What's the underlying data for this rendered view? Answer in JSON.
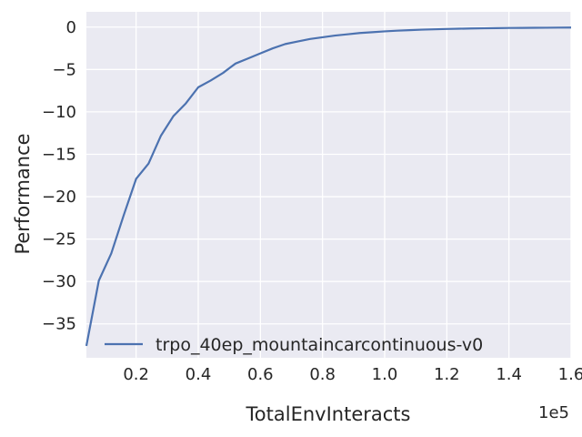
{
  "chart_data": {
    "type": "line",
    "xlabel": "TotalEnvInteracts",
    "ylabel": "Performance",
    "x_offset_label": "1e5",
    "xlim": [
      0.04,
      1.6
    ],
    "ylim": [
      -39.0,
      1.8
    ],
    "xticks": [
      0.2,
      0.4,
      0.6,
      0.8,
      1.0,
      1.2,
      1.4,
      1.6
    ],
    "xtick_labels": [
      "0.2",
      "0.4",
      "0.6",
      "0.8",
      "1.0",
      "1.2",
      "1.4",
      "1.6"
    ],
    "yticks": [
      -35,
      -30,
      -25,
      -20,
      -15,
      -10,
      -5,
      0
    ],
    "ytick_labels": [
      "−35",
      "−30",
      "−25",
      "−20",
      "−15",
      "−10",
      "−5",
      "0"
    ],
    "grid": true,
    "legend_position": "lower-center",
    "background_color": "#EAEAF2",
    "grid_color": "#FFFFFF",
    "series": [
      {
        "name": "trpo_40ep_mountaincarcontinuous-v0",
        "color": "#4C72B0",
        "x": [
          0.04,
          0.08,
          0.12,
          0.16,
          0.2,
          0.24,
          0.28,
          0.32,
          0.36,
          0.4,
          0.44,
          0.48,
          0.52,
          0.56,
          0.6,
          0.64,
          0.68,
          0.72,
          0.76,
          0.8,
          0.84,
          0.88,
          0.92,
          0.96,
          1.0,
          1.04,
          1.08,
          1.12,
          1.16,
          1.2,
          1.24,
          1.28,
          1.32,
          1.36,
          1.4,
          1.44,
          1.48,
          1.52,
          1.56,
          1.6
        ],
        "y": [
          -37.6,
          -29.9,
          -26.7,
          -22.2,
          -17.9,
          -16.1,
          -12.8,
          -10.5,
          -9.0,
          -7.1,
          -6.3,
          -5.4,
          -4.3,
          -3.7,
          -3.1,
          -2.5,
          -2.0,
          -1.7,
          -1.4,
          -1.2,
          -1.0,
          -0.85,
          -0.7,
          -0.6,
          -0.5,
          -0.42,
          -0.36,
          -0.3,
          -0.26,
          -0.22,
          -0.19,
          -0.16,
          -0.14,
          -0.12,
          -0.1,
          -0.09,
          -0.08,
          -0.07,
          -0.06,
          -0.05
        ]
      }
    ]
  }
}
